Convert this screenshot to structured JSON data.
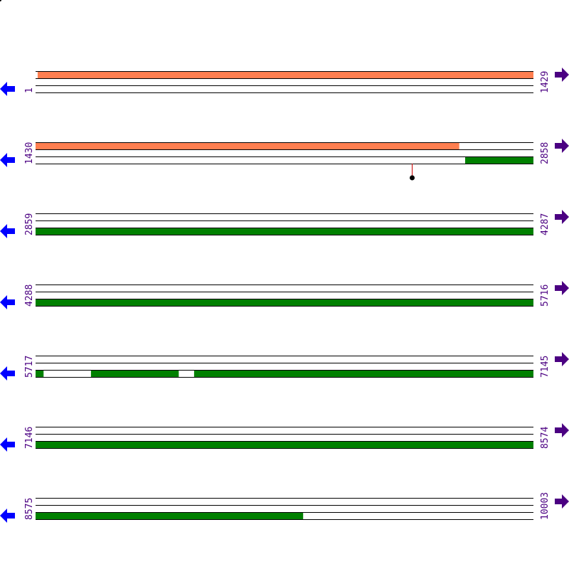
{
  "colors": {
    "line": "#000000",
    "orange_feature": "#ff7f50",
    "green_feature": "#008000",
    "label": "#4b0082",
    "left_arrow": "#0000ff",
    "right_arrow": "#4b0082",
    "lollipop_stem": "#cc0000",
    "lollipop_head": "#000000"
  },
  "icons": {
    "left": "arrow-left-icon",
    "right": "arrow-right-icon"
  },
  "rows": [
    {
      "start": "1",
      "end": "1429",
      "from": 1,
      "to": 1429,
      "top": [
        {
          "from": 7,
          "to": 1429,
          "color": "orange"
        }
      ],
      "bottom": []
    },
    {
      "start": "1430",
      "end": "2858",
      "from": 1430,
      "to": 2858,
      "top": [
        {
          "from": 1430,
          "to": 2645,
          "color": "orange"
        }
      ],
      "bottom": [
        {
          "from": 2663,
          "to": 2858,
          "color": "green"
        }
      ],
      "markers": [
        {
          "pos": 2510
        }
      ]
    },
    {
      "start": "2859",
      "end": "4287",
      "from": 2859,
      "to": 4287,
      "top": [],
      "bottom": [
        {
          "from": 2859,
          "to": 4287,
          "color": "green"
        }
      ]
    },
    {
      "start": "4288",
      "end": "5716",
      "from": 4288,
      "to": 5716,
      "top": [],
      "bottom": [
        {
          "from": 4288,
          "to": 5716,
          "color": "green"
        }
      ]
    },
    {
      "start": "5717",
      "end": "7145",
      "from": 5717,
      "to": 7145,
      "top": [],
      "bottom": [
        {
          "from": 5717,
          "to": 5739,
          "color": "green"
        },
        {
          "from": 5876,
          "to": 6127,
          "color": "green"
        },
        {
          "from": 6172,
          "to": 7145,
          "color": "green"
        }
      ]
    },
    {
      "start": "7146",
      "end": "8574",
      "from": 7146,
      "to": 8574,
      "top": [],
      "bottom": [
        {
          "from": 7146,
          "to": 8574,
          "color": "green"
        }
      ]
    },
    {
      "start": "8575",
      "end": "10003",
      "from": 8575,
      "to": 10003,
      "top": [],
      "bottom": [
        {
          "from": 8575,
          "to": 9342,
          "color": "green"
        }
      ]
    }
  ]
}
